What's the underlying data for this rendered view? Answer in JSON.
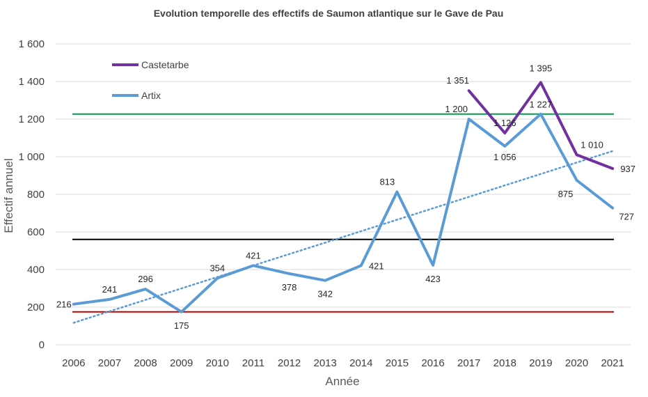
{
  "chart_data": {
    "type": "line",
    "title": "Evolution temporelle des effectifs de Saumon atlantique sur le Gave de Pau",
    "xlabel": "Année",
    "ylabel": "Effectif annuel",
    "x": [
      "2006",
      "2007",
      "2008",
      "2009",
      "2010",
      "2011",
      "2012",
      "2013",
      "2014",
      "2015",
      "2016",
      "2017",
      "2018",
      "2019",
      "2020",
      "2021"
    ],
    "ylim": [
      0,
      1600
    ],
    "yticks": [
      0,
      200,
      400,
      600,
      800,
      1000,
      1200,
      1400,
      1600
    ],
    "ytick_labels": [
      "0",
      "200",
      "400",
      "600",
      "800",
      "1 000",
      "1 200",
      "1 400",
      "1 600"
    ],
    "grid": true,
    "legend_position": "top-left",
    "series": [
      {
        "name": "Castetarbe",
        "color": "#7030a0",
        "values": [
          null,
          null,
          null,
          null,
          null,
          null,
          null,
          null,
          null,
          null,
          null,
          1351,
          1126,
          1395,
          1010,
          937
        ],
        "labels": [
          null,
          null,
          null,
          null,
          null,
          null,
          null,
          null,
          null,
          null,
          null,
          "1 351",
          "1 126",
          "1 395",
          "1 010",
          "937"
        ]
      },
      {
        "name": "Artix",
        "color": "#5b9bd5",
        "values": [
          216,
          241,
          296,
          175,
          354,
          421,
          378,
          342,
          421,
          813,
          423,
          1200,
          1056,
          1227,
          875,
          727
        ],
        "labels": [
          "216",
          "241",
          "296",
          "175",
          "354",
          "421",
          "378",
          "342",
          "421",
          "813",
          "423",
          "1 200",
          "1 056",
          "1 227",
          "875",
          "727"
        ]
      }
    ],
    "trendline": {
      "series": "Artix",
      "style": "dotted",
      "color": "#5b9bd5",
      "start": 117,
      "end": 1030
    },
    "reference_lines": [
      {
        "value": 1227,
        "color": "#00a050"
      },
      {
        "value": 560,
        "color": "#000000"
      },
      {
        "value": 175,
        "color": "#c00000"
      }
    ]
  }
}
